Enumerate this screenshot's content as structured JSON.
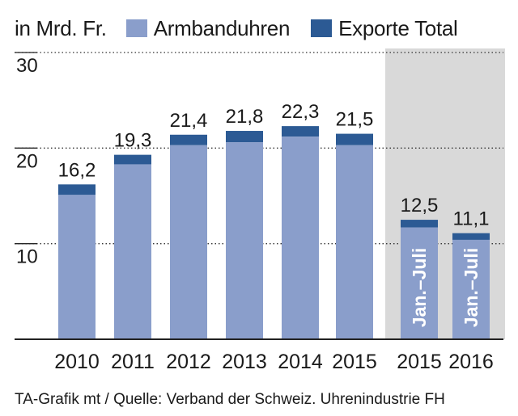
{
  "chart_data": {
    "type": "bar",
    "unit_label": "in Mrd. Fr.",
    "legend": [
      {
        "name": "Armbanduhren",
        "color": "#8a9ecb"
      },
      {
        "name": "Exporte Total",
        "color": "#2c5a94"
      }
    ],
    "categories": [
      "2010",
      "2011",
      "2012",
      "2013",
      "2014",
      "2015",
      "2015",
      "2016"
    ],
    "series": [
      {
        "name": "Armbanduhren",
        "values": [
          15.1,
          18.3,
          20.3,
          20.6,
          21.2,
          20.3,
          11.7,
          10.4
        ]
      },
      {
        "name": "Exporte Total",
        "values": [
          16.2,
          19.3,
          21.4,
          21.8,
          22.3,
          21.5,
          12.5,
          11.1
        ]
      }
    ],
    "value_labels": [
      "16,2",
      "19,3",
      "21,4",
      "21,8",
      "22,3",
      "21,5",
      "12,5",
      "11,1"
    ],
    "period_note": "Jan.–Juli",
    "period_note_indices": [
      6,
      7
    ],
    "yticks": [
      10,
      20,
      30
    ],
    "ylim": [
      0,
      30
    ],
    "grid": true,
    "highlight_band_indices": [
      6,
      7
    ],
    "source": "TA-Grafik mt / Quelle: Verband der Schweiz. Uhrenindustrie FH"
  },
  "colors": {
    "band": "#d9d9d9",
    "grid": "#333333",
    "axis": "#222222",
    "text": "#1a1a1a",
    "rotated_text": "#ffffff"
  }
}
